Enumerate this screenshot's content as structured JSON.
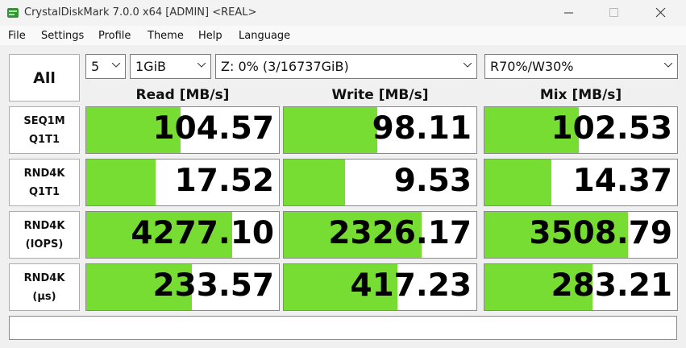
{
  "window": {
    "title": "CrystalDiskMark 7.0.0 x64 [ADMIN] <REAL>"
  },
  "menu": [
    "File",
    "Settings",
    "Profile",
    "Theme",
    "Help",
    "Language"
  ],
  "controls": {
    "all_button": "All",
    "count": "5",
    "size": "1GiB",
    "drive": "Z: 0% (3/16737GiB)",
    "mix": "R70%/W30%"
  },
  "columns": [
    "Read [MB/s]",
    "Write [MB/s]",
    "Mix [MB/s]"
  ],
  "rows": [
    {
      "label": [
        "SEQ1M",
        "Q1T1"
      ],
      "values": [
        "104.57",
        "98.11",
        "102.53"
      ]
    },
    {
      "label": [
        "RND4K",
        "Q1T1"
      ],
      "values": [
        "17.52",
        "9.53",
        "14.37"
      ]
    },
    {
      "label": [
        "RND4K",
        "(IOPS)"
      ],
      "values": [
        "4277.10",
        "2326.17",
        "3508.79"
      ]
    },
    {
      "label": [
        "RND4K",
        "(μs)"
      ],
      "values": [
        "233.57",
        "417.23",
        "283.21"
      ]
    }
  ]
}
